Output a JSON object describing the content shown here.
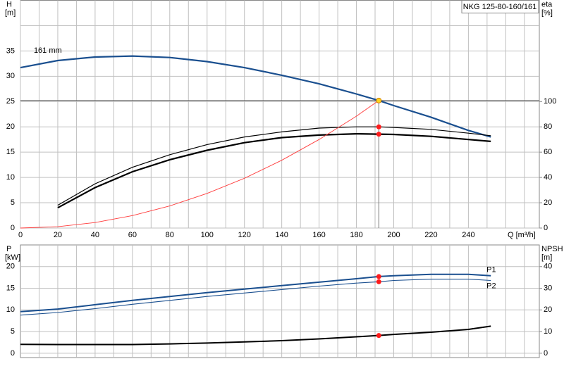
{
  "chart_data": [
    {
      "type": "line",
      "title": "NKG 125-80-160/161",
      "ylabel": "H",
      "yunit": "[m]",
      "y2label": "eta",
      "y2unit": "[%]",
      "xlabel": "Q [m³/h]",
      "xlim": [
        0,
        278
      ],
      "xticks": [
        0,
        20,
        40,
        60,
        80,
        100,
        120,
        140,
        160,
        180,
        200,
        220,
        240
      ],
      "xgrid": [
        10,
        30,
        50,
        70,
        90,
        110,
        130,
        150,
        170,
        190,
        210,
        230,
        250,
        260,
        270
      ],
      "ylim": [
        0,
        45
      ],
      "yticks": [
        0,
        5,
        10,
        15,
        20,
        25,
        30,
        35
      ],
      "ygrid": [
        40
      ],
      "y2lim": [
        0,
        180
      ],
      "y2ticks": [
        0,
        20,
        40,
        60,
        80,
        100
      ],
      "crosshair": true,
      "series": [
        {
          "name": "161 mm",
          "color": "#1a4f8f",
          "width": 2.2,
          "x": [
            0,
            20,
            40,
            60,
            80,
            100,
            120,
            140,
            160,
            180,
            192,
            200,
            220,
            240,
            252
          ],
          "values": [
            31.7,
            33.1,
            33.8,
            34.0,
            33.7,
            32.9,
            31.7,
            30.2,
            28.5,
            26.5,
            25.2,
            24.2,
            21.9,
            19.3,
            18.0
          ]
        },
        {
          "color": "#000000",
          "width": 1.2,
          "axis": "y2",
          "x": [
            20,
            40,
            60,
            80,
            100,
            120,
            140,
            160,
            180,
            192,
            200,
            220,
            240,
            252
          ],
          "values": [
            18,
            35,
            48,
            58,
            66,
            72,
            76,
            79,
            80,
            80,
            79.5,
            78,
            75,
            73
          ]
        },
        {
          "color": "#000000",
          "width": 2.2,
          "axis": "y2",
          "x": [
            20,
            40,
            60,
            80,
            100,
            120,
            140,
            160,
            180,
            192,
            200,
            220,
            240,
            252
          ],
          "values": [
            16,
            32,
            44.5,
            54,
            61.5,
            67.5,
            71.5,
            73.5,
            74.5,
            74.2,
            74,
            72.5,
            70,
            68.5
          ]
        },
        {
          "color": "#ff3b3b",
          "width": 0.9,
          "x": [
            0,
            20,
            40,
            60,
            80,
            100,
            120,
            140,
            160,
            180,
            192
          ],
          "values": [
            0,
            0.27,
            1.09,
            2.46,
            4.37,
            6.84,
            9.84,
            13.4,
            17.5,
            22.1,
            25.2
          ]
        }
      ],
      "points": [
        {
          "x": 192,
          "y": 25.2,
          "color": "#ffd21f"
        },
        {
          "x": 192,
          "y": 80,
          "color": "#ff1a1a",
          "axis": "y2"
        },
        {
          "x": 192,
          "y": 74.2,
          "color": "#ff1a1a",
          "axis": "y2"
        }
      ]
    },
    {
      "type": "line",
      "ylabel": "P",
      "yunit": "[kW]",
      "y2label": "NPSH",
      "y2unit": "[m]",
      "xlim": [
        0,
        278
      ],
      "xgrid": [
        10,
        20,
        30,
        40,
        50,
        60,
        70,
        80,
        90,
        100,
        110,
        120,
        130,
        140,
        150,
        160,
        170,
        180,
        190,
        200,
        210,
        220,
        230,
        240,
        250,
        260,
        270
      ],
      "ylim": [
        -1,
        25
      ],
      "yticks": [
        0,
        5,
        10,
        15,
        20
      ],
      "y2lim": [
        -2,
        50
      ],
      "y2ticks": [
        0,
        10,
        20,
        30,
        40
      ],
      "series": [
        {
          "name": "P1",
          "color": "#1a4f8f",
          "width": 2,
          "x": [
            0,
            20,
            40,
            60,
            80,
            100,
            120,
            140,
            160,
            180,
            192,
            200,
            220,
            240,
            252
          ],
          "values": [
            9.6,
            10.2,
            11.2,
            12.2,
            13.1,
            14.0,
            14.8,
            15.6,
            16.4,
            17.2,
            17.7,
            17.9,
            18.2,
            18.2,
            17.9
          ]
        },
        {
          "name": "P2",
          "color": "#1a4f8f",
          "width": 1.1,
          "x": [
            0,
            20,
            40,
            60,
            80,
            100,
            120,
            140,
            160,
            180,
            192,
            200,
            220,
            240,
            252
          ],
          "values": [
            8.8,
            9.4,
            10.3,
            11.3,
            12.2,
            13.1,
            13.9,
            14.7,
            15.5,
            16.2,
            16.5,
            16.8,
            17.1,
            17.1,
            16.8
          ]
        },
        {
          "color": "#000000",
          "width": 2,
          "axis": "y2",
          "x": [
            0,
            20,
            40,
            60,
            80,
            100,
            120,
            140,
            160,
            180,
            192,
            200,
            220,
            240,
            252
          ],
          "values": [
            4.1,
            4.0,
            4.0,
            4.0,
            4.3,
            4.7,
            5.2,
            5.8,
            6.6,
            7.6,
            8.2,
            8.7,
            9.7,
            11.0,
            12.5
          ]
        }
      ],
      "points": [
        {
          "x": 192,
          "y": 17.7,
          "color": "#ff1a1a"
        },
        {
          "x": 192,
          "y": 16.5,
          "color": "#ff1a1a"
        },
        {
          "x": 192,
          "y": 8.2,
          "color": "#ff1a1a",
          "axis": "y2"
        }
      ]
    }
  ]
}
